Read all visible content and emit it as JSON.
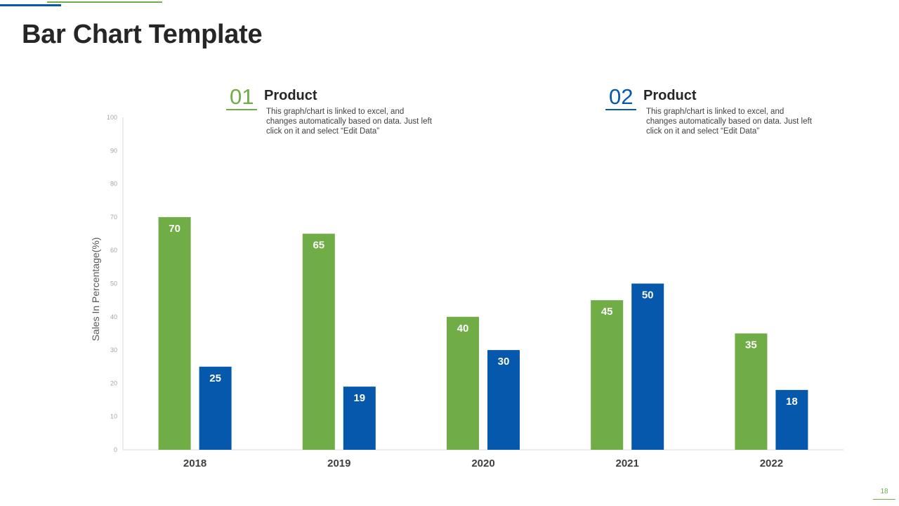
{
  "title": "Bar Chart Template",
  "legend": [
    {
      "number": "01",
      "heading": "Product",
      "description": "This graph/chart is linked to excel, and changes automatically based on data. Just left click on it and select “Edit Data”",
      "color": "#70AD47"
    },
    {
      "number": "02",
      "heading": "Product",
      "description": "This graph/chart is linked to excel, and changes automatically based on data. Just left click on it and select “Edit Data”",
      "color": "#0558AC"
    }
  ],
  "page_number": "18",
  "chart_data": {
    "type": "bar",
    "title": "",
    "xlabel": "",
    "ylabel": "Sales In Percentage(%)",
    "ylim": [
      0,
      100
    ],
    "yticks": [
      0,
      10,
      20,
      30,
      40,
      50,
      60,
      70,
      80,
      90,
      100
    ],
    "categories": [
      "2018",
      "2019",
      "2020",
      "2021",
      "2022"
    ],
    "series": [
      {
        "name": "Product 01",
        "color": "#70AD47",
        "values": [
          70,
          65,
          40,
          45,
          35
        ]
      },
      {
        "name": "Product 02",
        "color": "#0558AC",
        "values": [
          25,
          19,
          30,
          50,
          18
        ]
      }
    ],
    "grid": false,
    "legend": "top"
  }
}
